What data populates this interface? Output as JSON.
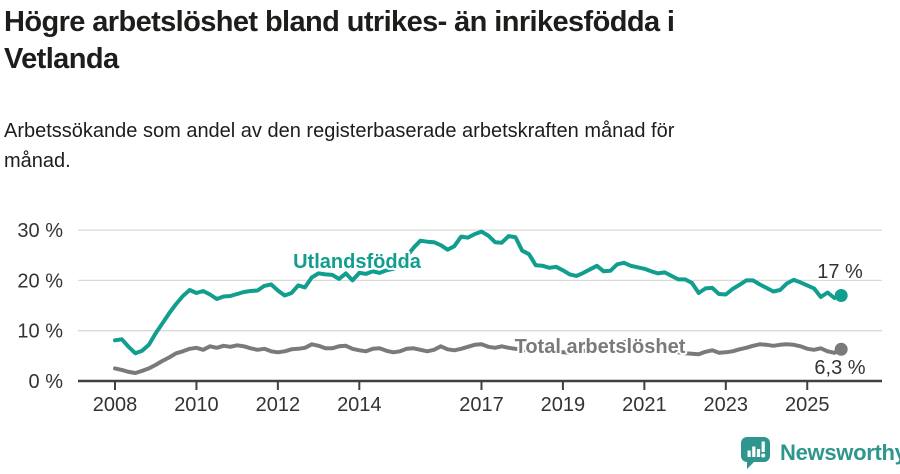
{
  "title_lines": [
    "Högre arbetslöshet bland utrikes- än inrikesfödda i",
    "Vetlanda"
  ],
  "subtitle_lines": [
    "Arbetssökande som andel av den registerbaserade arbetskraften månad för",
    "månad."
  ],
  "footer": {
    "brand": "Newsworthy",
    "logo_icon": "speech-bubble-bar-chart"
  },
  "colors": {
    "title_text": "#1d1d1b",
    "axis_text": "#333333",
    "axis_line": "#404040",
    "gridline": "#d9d9d9",
    "series_teal": "#119e8f",
    "series_gray": "#7a7a7a",
    "logo_teal": "#2f968e"
  },
  "chart_data": {
    "type": "line",
    "x_start": 2008.0,
    "x_step_years": 0.16667,
    "x_ticks": [
      2008,
      2010,
      2012,
      2014,
      2017,
      2019,
      2021,
      2023,
      2025
    ],
    "y_ticks": [
      {
        "label": "0 %",
        "value": 0
      },
      {
        "label": "10 %",
        "value": 10
      },
      {
        "label": "20 %",
        "value": 20
      },
      {
        "label": "30 %",
        "value": 30
      }
    ],
    "ylim": [
      0,
      33
    ],
    "grid": "horizontal-only",
    "legend_position": "inline-labels",
    "series": [
      {
        "name": "Utlandsfödda",
        "color": "#119e8f",
        "end_label": "17 %",
        "last_value": 17.0,
        "values": [
          8.1,
          8.3,
          6.8,
          5.5,
          6.0,
          7.2,
          9.5,
          11.5,
          13.5,
          15.3,
          16.9,
          18.1,
          17.5,
          17.9,
          17.2,
          16.3,
          16.8,
          16.9,
          17.3,
          17.7,
          17.9,
          18.0,
          18.9,
          19.2,
          18.0,
          17.0,
          17.5,
          19.0,
          18.6,
          20.6,
          21.4,
          21.2,
          21.1,
          20.3,
          21.4,
          20.0,
          21.5,
          21.3,
          21.8,
          21.5,
          22.0,
          22.3,
          23.0,
          24.8,
          26.5,
          27.9,
          27.7,
          27.6,
          27.0,
          26.1,
          26.8,
          28.7,
          28.5,
          29.2,
          29.7,
          28.9,
          27.6,
          27.5,
          28.8,
          28.6,
          25.9,
          25.2,
          23.0,
          22.9,
          22.5,
          22.7,
          22.0,
          21.2,
          20.9,
          21.5,
          22.2,
          22.9,
          21.8,
          21.9,
          23.2,
          23.5,
          22.9,
          22.6,
          22.3,
          21.8,
          21.4,
          21.6,
          20.9,
          20.2,
          20.2,
          19.5,
          17.5,
          18.4,
          18.5,
          17.3,
          17.2,
          18.3,
          19.1,
          20.0,
          20.0,
          19.2,
          18.5,
          17.8,
          18.1,
          19.4,
          20.1,
          19.6,
          19.0,
          18.4,
          16.7,
          17.6,
          16.5,
          17.0
        ]
      },
      {
        "name": "Total arbetslöshet",
        "color": "#7a7a7a",
        "end_label": "6,3 %",
        "last_value": 6.3,
        "values": [
          2.5,
          2.2,
          1.8,
          1.6,
          2.0,
          2.5,
          3.2,
          4.0,
          4.7,
          5.5,
          5.9,
          6.4,
          6.6,
          6.2,
          6.9,
          6.6,
          7.0,
          6.8,
          7.1,
          6.9,
          6.5,
          6.2,
          6.4,
          5.9,
          5.7,
          5.9,
          6.3,
          6.4,
          6.6,
          7.3,
          7.0,
          6.5,
          6.5,
          6.9,
          7.0,
          6.4,
          6.1,
          5.9,
          6.4,
          6.5,
          6.0,
          5.7,
          5.9,
          6.4,
          6.5,
          6.2,
          5.9,
          6.2,
          6.9,
          6.3,
          6.1,
          6.4,
          6.8,
          7.2,
          7.3,
          6.8,
          6.6,
          6.9,
          6.6,
          6.4,
          6.2,
          6.0,
          6.1,
          5.9,
          5.8,
          5.9,
          5.7,
          5.6,
          5.8,
          6.0,
          5.9,
          6.1,
          6.3,
          7.0,
          7.6,
          7.8,
          7.6,
          7.3,
          7.0,
          6.8,
          6.5,
          6.2,
          6.0,
          5.7,
          5.5,
          5.4,
          5.3,
          5.8,
          6.1,
          5.6,
          5.7,
          5.9,
          6.3,
          6.6,
          7.0,
          7.3,
          7.2,
          7.0,
          7.2,
          7.3,
          7.2,
          6.9,
          6.4,
          6.2,
          6.5,
          5.9,
          5.6,
          6.3
        ]
      }
    ]
  }
}
